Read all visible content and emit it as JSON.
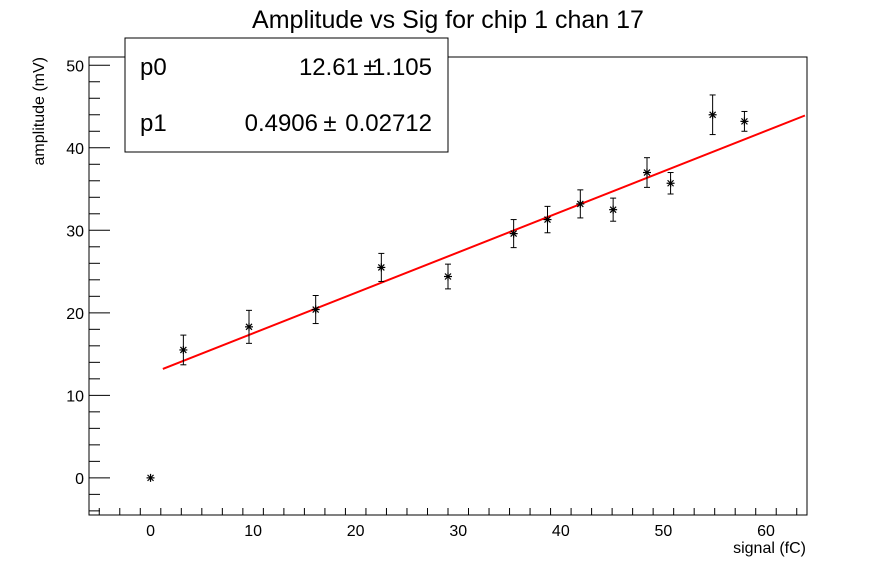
{
  "chart_data": {
    "type": "scatter",
    "title": "Amplitude vs Sig for chip 1 chan 17",
    "xlabel": "signal (fC)",
    "ylabel": "amplitude (mV)",
    "xlim": [
      -6,
      64
    ],
    "ylim": [
      -4.5,
      51
    ],
    "xticks": [
      0,
      10,
      20,
      30,
      40,
      50,
      60
    ],
    "yticks": [
      0,
      10,
      20,
      30,
      40,
      50
    ],
    "grid": false,
    "series": [
      {
        "marker": "asterisk",
        "color": "#000000",
        "points": [
          {
            "x": 0,
            "y": 0,
            "err": 0
          },
          {
            "x": 3.2,
            "y": 15.5,
            "err": 1.8
          },
          {
            "x": 9.6,
            "y": 18.3,
            "err": 2.0
          },
          {
            "x": 16.1,
            "y": 20.4,
            "err": 1.7
          },
          {
            "x": 22.5,
            "y": 25.5,
            "err": 1.7
          },
          {
            "x": 29.0,
            "y": 24.4,
            "err": 1.5
          },
          {
            "x": 35.4,
            "y": 29.6,
            "err": 1.7
          },
          {
            "x": 38.7,
            "y": 31.3,
            "err": 1.6
          },
          {
            "x": 41.9,
            "y": 33.2,
            "err": 1.7
          },
          {
            "x": 45.1,
            "y": 32.5,
            "err": 1.4
          },
          {
            "x": 48.4,
            "y": 37.0,
            "err": 1.8
          },
          {
            "x": 50.7,
            "y": 35.7,
            "err": 1.3
          },
          {
            "x": 54.8,
            "y": 44.0,
            "err": 2.4
          },
          {
            "x": 57.9,
            "y": 43.2,
            "err": 1.2
          }
        ]
      }
    ],
    "fit": {
      "color": "#ff0000",
      "x_range": [
        1.2,
        63.8
      ],
      "p0": 12.61,
      "p1": 0.4906
    },
    "stats_box": {
      "position": "top-left",
      "rows": [
        {
          "name": "p0",
          "value": "12.61",
          "pm": "±",
          "error": "1.105"
        },
        {
          "name": "p1",
          "value": "0.4906",
          "pm": "±",
          "error": "0.02712"
        }
      ]
    }
  }
}
